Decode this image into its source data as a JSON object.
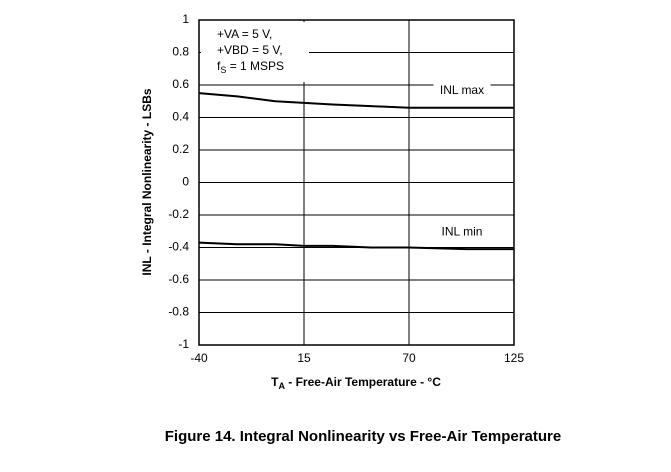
{
  "chart_data": {
    "type": "line",
    "title": "Figure 14. Integral Nonlinearity vs Free-Air Temperature",
    "x_label": {
      "main": "T",
      "sub": "A",
      "rest": " - Free-Air Temperature - °C"
    },
    "y_label": "INL - Integral Nonlinearity - LSBs",
    "annotations": [
      {
        "main": "+VA = 5 V,"
      },
      {
        "main": "+VBD = 5 V,"
      },
      {
        "main": "f",
        "sub": "S",
        "rest": " = 1 MSPS"
      }
    ],
    "x": [
      -40,
      -20,
      0,
      15,
      30,
      50,
      70,
      100,
      125
    ],
    "series": [
      {
        "name": "INL max",
        "color": "#000000",
        "values": [
          0.55,
          0.53,
          0.5,
          0.49,
          0.48,
          0.47,
          0.46,
          0.46,
          0.46
        ]
      },
      {
        "name": "INL min",
        "color": "#000000",
        "values": [
          -0.37,
          -0.38,
          -0.38,
          -0.39,
          -0.39,
          -0.4,
          -0.4,
          -0.41,
          -0.41
        ]
      }
    ],
    "xlim": [
      -40,
      125
    ],
    "xticks": [
      -40,
      15,
      70,
      125
    ],
    "ylim": [
      -1,
      1
    ],
    "yticks": [
      -1,
      -0.8,
      -0.6,
      -0.4,
      -0.2,
      0,
      0.2,
      0.4,
      0.6,
      0.8,
      1
    ],
    "grid": true
  }
}
